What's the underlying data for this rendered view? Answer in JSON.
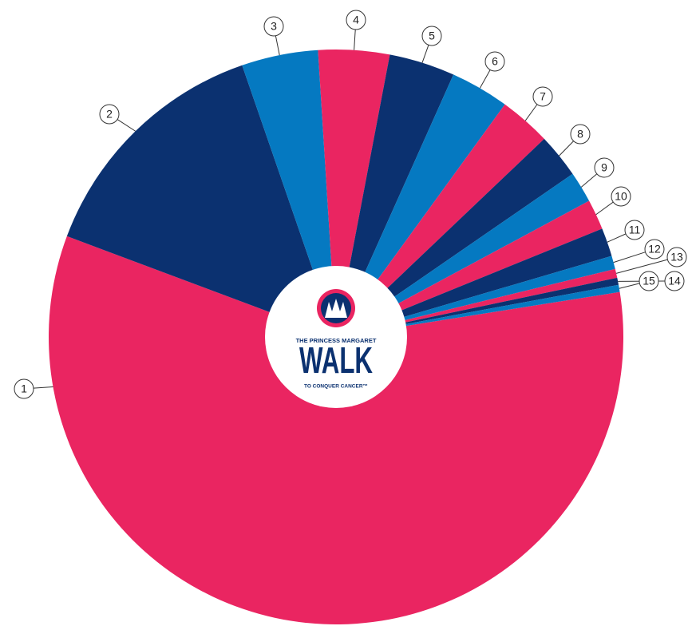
{
  "chart_data": {
    "type": "pie",
    "categories": [
      "1",
      "2",
      "3",
      "4",
      "5",
      "6",
      "7",
      "8",
      "9",
      "10",
      "11",
      "12",
      "13",
      "14",
      "15"
    ],
    "values": [
      58.2,
      14,
      4.3,
      4,
      3.7,
      3.3,
      2.9,
      2.5,
      1.75,
      1.7,
      1.6,
      0.75,
      0.5,
      0.4,
      0.4
    ],
    "colors": [
      "#ea2561",
      "#0b3170",
      "#0579c1",
      "#ea2561",
      "#0b3170",
      "#0579c1",
      "#ea2561",
      "#0b3170",
      "#0579c1",
      "#ea2561",
      "#0b3170",
      "#0579c1",
      "#ea2561",
      "#0b3170",
      "#0579c1"
    ],
    "center_logo": {
      "top": "THE PRINCESS MARGARET",
      "main": "WALK",
      "bottom": "TO CONQUER CANCER™"
    }
  }
}
